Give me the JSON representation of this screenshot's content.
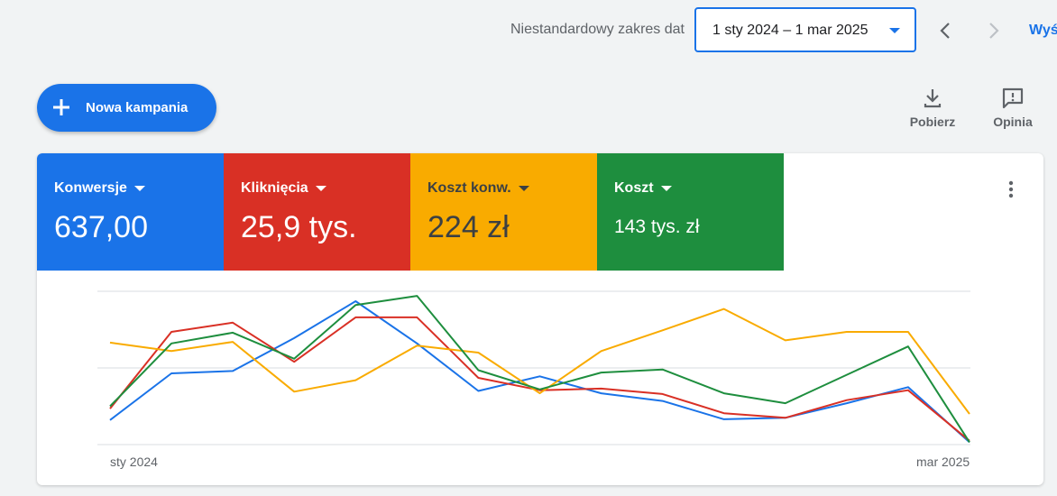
{
  "header": {
    "date_range_label": "Niestandardowy zakres dat",
    "date_range_value": "1 sty 2024 – 1 mar 2025",
    "show_link": "Wyś"
  },
  "toolbar": {
    "new_campaign_label": "Nowa kampania",
    "download_label": "Pobierz",
    "feedback_label": "Opinia"
  },
  "icons": [
    "plus-icon",
    "chevron-left-icon",
    "chevron-right-icon",
    "download-icon",
    "feedback-icon",
    "more-vert-icon",
    "dropdown-caret-icon"
  ],
  "metrics": [
    {
      "title": "Konwersje",
      "value": "637,00",
      "color": "#1a73e8"
    },
    {
      "title": "Kliknięcia",
      "value": "25,9 tys.",
      "color": "#d93025"
    },
    {
      "title": "Koszt konw.",
      "value": "224 zł",
      "color": "#f9ab00"
    },
    {
      "title": "Koszt",
      "value": "143 tys. zł",
      "color": "#1e8e3e"
    }
  ],
  "chart_data": {
    "type": "line",
    "x": [
      "sty 2024",
      "",
      "",
      "",
      "",
      "",
      "",
      "",
      "",
      "",
      "",
      "",
      "",
      "",
      "mar 2025"
    ],
    "x_tick_labels": [
      "sty 2024",
      "mar 2025"
    ],
    "ylim": [
      0,
      2
    ],
    "grid": true,
    "series": [
      {
        "color": "#1a73e8",
        "values": [
          0.32,
          0.93,
          0.96,
          1.39,
          1.87,
          1.32,
          0.7,
          0.89,
          0.67,
          0.57,
          0.33,
          0.35,
          0.54,
          0.75,
          0.03
        ]
      },
      {
        "color": "#d93025",
        "values": [
          0.47,
          1.47,
          1.59,
          1.08,
          1.66,
          1.66,
          0.87,
          0.71,
          0.73,
          0.66,
          0.41,
          0.35,
          0.58,
          0.71,
          0.05
        ]
      },
      {
        "color": "#f9ab00",
        "values": [
          1.33,
          1.22,
          1.34,
          0.69,
          0.84,
          1.29,
          1.2,
          0.67,
          1.22,
          1.49,
          1.77,
          1.36,
          1.47,
          1.47,
          0.4
        ]
      },
      {
        "color": "#1e8e3e",
        "values": [
          0.5,
          1.32,
          1.46,
          1.12,
          1.82,
          1.94,
          0.97,
          0.72,
          0.94,
          0.98,
          0.67,
          0.54,
          0.91,
          1.28,
          0.03
        ]
      }
    ]
  }
}
